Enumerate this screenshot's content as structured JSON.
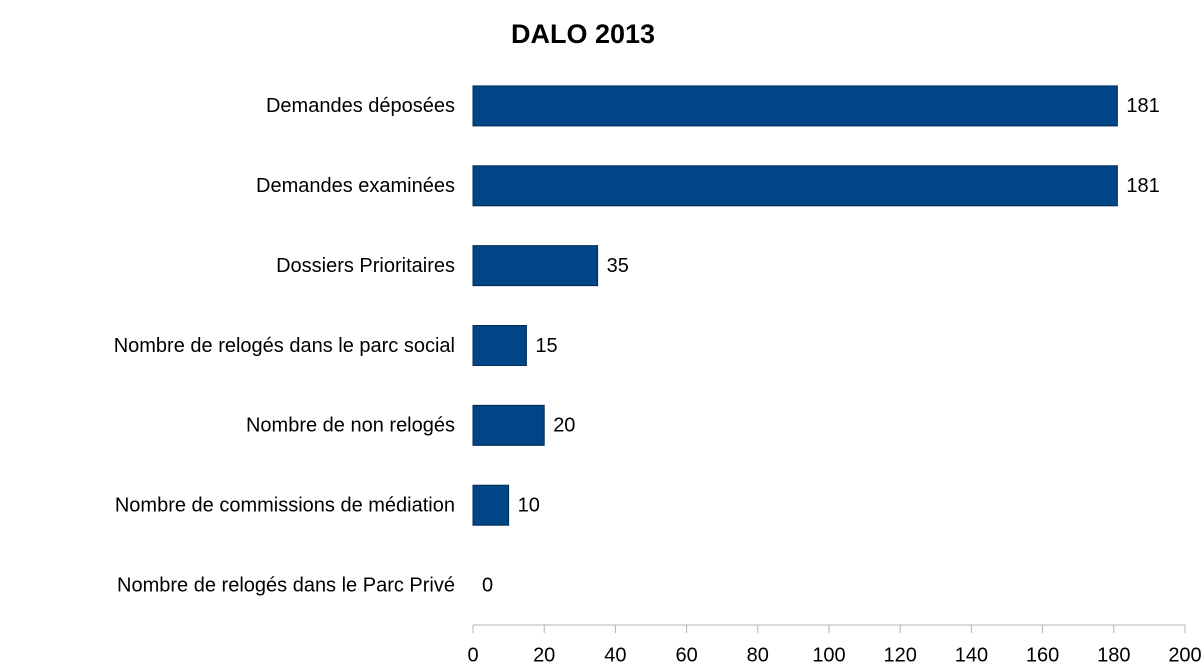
{
  "chart_data": {
    "type": "bar",
    "orientation": "horizontal",
    "title": "DALO 2013",
    "categories": [
      "Demandes déposées",
      "Demandes examinées",
      "Dossiers Prioritaires",
      "Nombre de relogés dans le parc social",
      "Nombre de non relogés",
      "Nombre de commissions de médiation",
      "Nombre de relogés dans le Parc Privé"
    ],
    "values": [
      181,
      181,
      35,
      15,
      20,
      10,
      0
    ],
    "color": "#004586",
    "xlim": [
      0,
      200
    ],
    "xticks": [
      0,
      20,
      40,
      60,
      80,
      100,
      120,
      140,
      160,
      180,
      200
    ]
  }
}
